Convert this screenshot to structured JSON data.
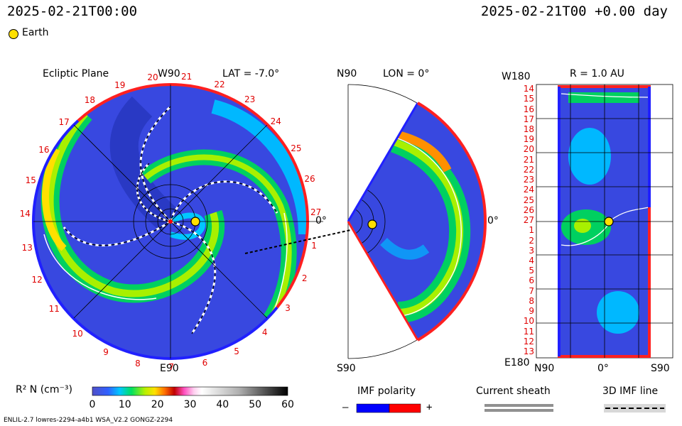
{
  "header": {
    "timestamp_left": "2025-02-21T00:00",
    "timestamp_right": "2025-02-21T00 +0.00 day",
    "earth_label": "Earth"
  },
  "panels": {
    "ecliptic": {
      "title": "Ecliptic Plane",
      "top_label": "W90",
      "bottom_label": "E90",
      "right_label": "0°",
      "lat_label": "LAT = -7.0°",
      "ring_numbers": [
        "17",
        "18",
        "19",
        "20",
        "21",
        "22",
        "23",
        "24",
        "25",
        "26",
        "27",
        "1",
        "2",
        "3",
        "4",
        "5",
        "6",
        "7",
        "8",
        "9",
        "10",
        "11",
        "12",
        "13",
        "14",
        "15",
        "16"
      ]
    },
    "meridional": {
      "top_label": "N90",
      "bottom_label": "S90",
      "right_label": "0°",
      "lon_label": "LON = 0°"
    },
    "synoptic": {
      "top_left_label": "W180",
      "bottom_left_label": "E180",
      "title": "R = 1.0 AU",
      "row_labels": [
        "14",
        "15",
        "16",
        "17",
        "18",
        "19",
        "20",
        "21",
        "22",
        "23",
        "24",
        "25",
        "26",
        "27",
        "1",
        "2",
        "3",
        "4",
        "5",
        "6",
        "7",
        "8",
        "9",
        "10",
        "11",
        "12",
        "13"
      ],
      "x_labels": [
        "N90",
        "0°",
        "S90"
      ]
    }
  },
  "colorbar": {
    "label": "R² N (cm⁻³)",
    "ticks": [
      "0",
      "10",
      "20",
      "30",
      "40",
      "50",
      "60"
    ]
  },
  "legends": {
    "imf_polarity": {
      "title": "IMF polarity",
      "minus": "–",
      "plus": "+",
      "neg_color": "#0000ff",
      "pos_color": "#ff0000"
    },
    "current_sheath": {
      "title": "Current sheath"
    },
    "imf_line": {
      "title": "3D IMF line"
    }
  },
  "footer": {
    "model_text": "ENLIL-2.7 lowres-2294-a4b1 WSA_V2.2 GONGZ-2294"
  },
  "chart_data": [
    {
      "type": "heatmap",
      "title": "Ecliptic Plane",
      "subtitle": "LAT = -7.0°",
      "quantity": "R² N (cm⁻³)",
      "range": [
        0,
        60
      ]
    },
    {
      "type": "heatmap",
      "title": "LON = 0°",
      "quantity": "R² N (cm⁻³)",
      "range": [
        0,
        60
      ]
    },
    {
      "type": "heatmap",
      "title": "R = 1.0 AU",
      "quantity": "R² N (cm⁻³)",
      "range": [
        0,
        60
      ]
    }
  ]
}
